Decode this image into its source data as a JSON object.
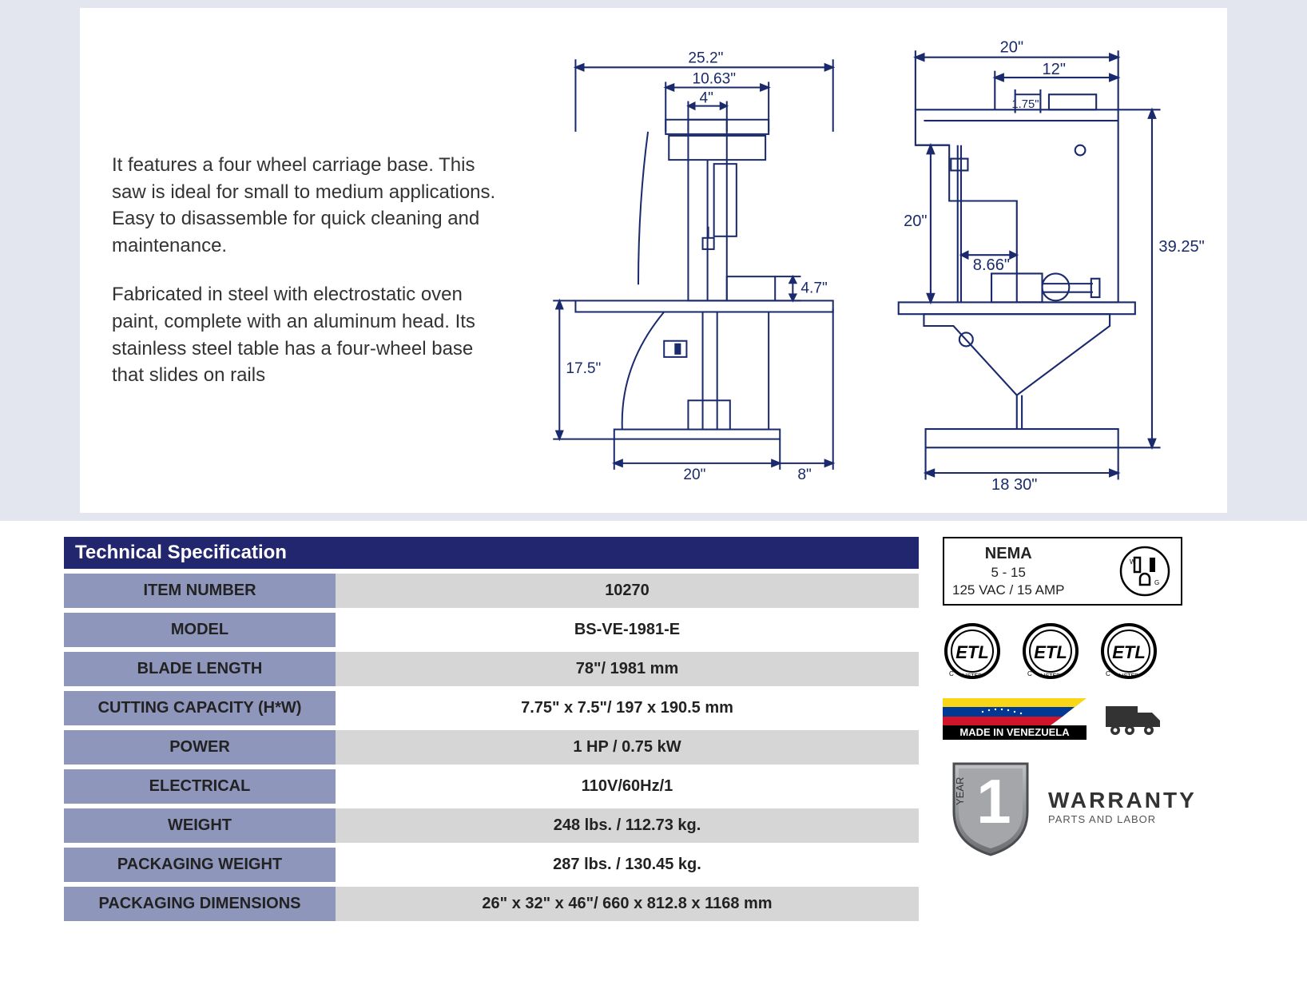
{
  "description": {
    "para1": "It features a four wheel carriage base. This saw is ideal for small to medium applications. Easy to disassemble for quick cleaning and maintenance.",
    "para2": "Fabricated in steel with electrostatic oven paint, complete with an aluminum head. Its stainless steel table has a four-wheel base that slides on rails"
  },
  "diagram": {
    "type": "engineering-drawing",
    "stroke_color": "#1a2a6c",
    "stroke_width": 2,
    "text_color": "#1a2a6c",
    "font_size": 18,
    "front_view": {
      "dims": {
        "overall_width": "25.2\"",
        "upper_mid": "10.63\"",
        "upper_small": "4\"",
        "table_left_height": "17.5\"",
        "table_right_height": "4.7\"",
        "base_width": "20\"",
        "base_right": "8\""
      }
    },
    "side_view": {
      "dims": {
        "overall_width": "20\"",
        "top_inner": "12\"",
        "top_small": "1.75\"",
        "throat_height": "20\"",
        "throat_depth": "8.66\"",
        "overall_height": "39.25\"",
        "base_width": "18 30\""
      }
    }
  },
  "specSection": {
    "header": "Technical Specification",
    "label_bg": "#8f96bb",
    "odd_bg": "#d6d6d6",
    "even_bg": "#ffffff",
    "header_bg": "#22266e",
    "rows": [
      {
        "label": "ITEM NUMBER",
        "value": "10270"
      },
      {
        "label": "MODEL",
        "value": "BS-VE-1981-E"
      },
      {
        "label": "BLADE LENGTH",
        "value": "78\"/ 1981 mm"
      },
      {
        "label": "CUTTING CAPACITY (H*W)",
        "value": "7.75\" x 7.5\"/ 197 x 190.5 mm"
      },
      {
        "label": "POWER",
        "value": "1 HP / 0.75 kW"
      },
      {
        "label": "ELECTRICAL",
        "value": "110V/60Hz/1"
      },
      {
        "label": "WEIGHT",
        "value": "248 lbs. / 112.73 kg."
      },
      {
        "label": "PACKAGING WEIGHT",
        "value": "287 lbs. / 130.45 kg."
      },
      {
        "label": "PACKAGING  DIMENSIONS",
        "value": "26\" x 32\" x 46\"/ 660 x 812.8 x 1168 mm"
      }
    ]
  },
  "badges": {
    "nema": {
      "title": "NEMA",
      "sub": "5 - 15",
      "rating": "125 VAC / 15 AMP"
    },
    "etl_count": 3,
    "etl_text": "ETL",
    "venezuela": {
      "label": "MADE IN VENEZUELA",
      "flag_colors": [
        "#f9d616",
        "#003893",
        "#cf142b"
      ]
    },
    "truck_color": "#333333",
    "warranty": {
      "number": "1",
      "year": "YEAR",
      "title": "WARRANTY",
      "sub": "PARTS AND LABOR",
      "shield_color": "#888a8d",
      "accent": "#4a4c4f"
    }
  }
}
